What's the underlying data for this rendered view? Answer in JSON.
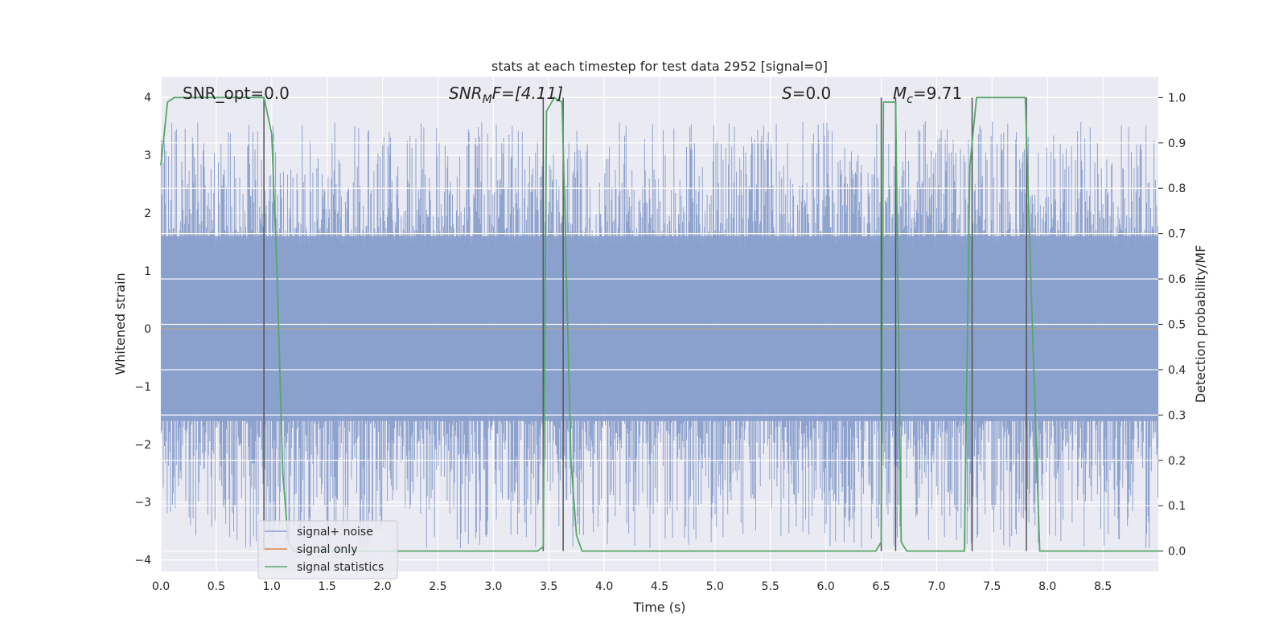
{
  "chart_data": {
    "type": "line",
    "title": "stats at each timestep for test data 2952 [signal=0]",
    "xlabel": "Time (s)",
    "ylabel": "Whitened strain",
    "y2label": "Detection probability/MF",
    "xlim": [
      0,
      9
    ],
    "ylim": [
      -4.2,
      4.35
    ],
    "y2lim": [
      -0.045,
      1.045
    ],
    "xticks": [
      "0.0",
      "0.5",
      "1.0",
      "1.5",
      "2.0",
      "2.5",
      "3.0",
      "3.5",
      "4.0",
      "4.5",
      "5.0",
      "5.5",
      "6.0",
      "6.5",
      "7.0",
      "7.5",
      "8.0",
      "8.5"
    ],
    "yticks": [
      "4",
      "3",
      "2",
      "1",
      "0",
      "−1",
      "−2",
      "−3",
      "−4"
    ],
    "y2ticks": [
      "1.0",
      "0.9",
      "0.8",
      "0.7",
      "0.6",
      "0.5",
      "0.4",
      "0.3",
      "0.2",
      "0.1",
      "0.0"
    ],
    "grid": true,
    "legend_position": "lower-left",
    "annotations": {
      "snr_opt": "SNR_opt=0.0",
      "snr_mf_sym": "SNR",
      "snr_mf_sub": "M",
      "snr_mf_rest": "F=[4.11]",
      "s_sym": "S",
      "s_rest": "=0.0",
      "mc_sym": "M",
      "mc_sub": "c",
      "mc_rest": "=9.71"
    },
    "series": [
      {
        "name": "signal+ noise",
        "color": "#8a9fcc",
        "kind": "noise band",
        "typical_range": [
          -1.6,
          1.6
        ],
        "extreme_range": [
          -3.8,
          3.6
        ]
      },
      {
        "name": "signal only",
        "color": "#dd8452",
        "x": [
          0,
          9
        ],
        "y": [
          0,
          0
        ]
      },
      {
        "name": "signal statistics",
        "color": "#55a868",
        "axis": "right",
        "x": [
          0,
          0.06,
          0.12,
          0.5,
          0.93,
          1.0,
          1.05,
          1.1,
          1.15,
          1.2,
          3.4,
          3.45,
          3.48,
          3.55,
          3.62,
          3.65,
          3.7,
          3.75,
          3.8,
          6.45,
          6.5,
          6.52,
          6.56,
          6.63,
          6.68,
          6.73,
          7.25,
          7.3,
          7.36,
          7.42,
          7.8,
          7.85,
          7.93,
          9.0
        ],
        "y": [
          0.85,
          0.99,
          1.0,
          1.0,
          1.0,
          0.92,
          0.6,
          0.17,
          0.02,
          0.0,
          0.0,
          0.01,
          0.97,
          1.0,
          0.99,
          0.7,
          0.2,
          0.035,
          0.0,
          0.0,
          0.02,
          0.99,
          0.99,
          0.99,
          0.02,
          0.0,
          0.0,
          0.85,
          1.0,
          1.0,
          1.0,
          0.6,
          0.0,
          0.0
        ]
      }
    ],
    "vertical_markers_x": [
      0.93,
      3.45,
      3.63,
      6.5,
      6.63,
      7.32,
      7.81
    ]
  }
}
